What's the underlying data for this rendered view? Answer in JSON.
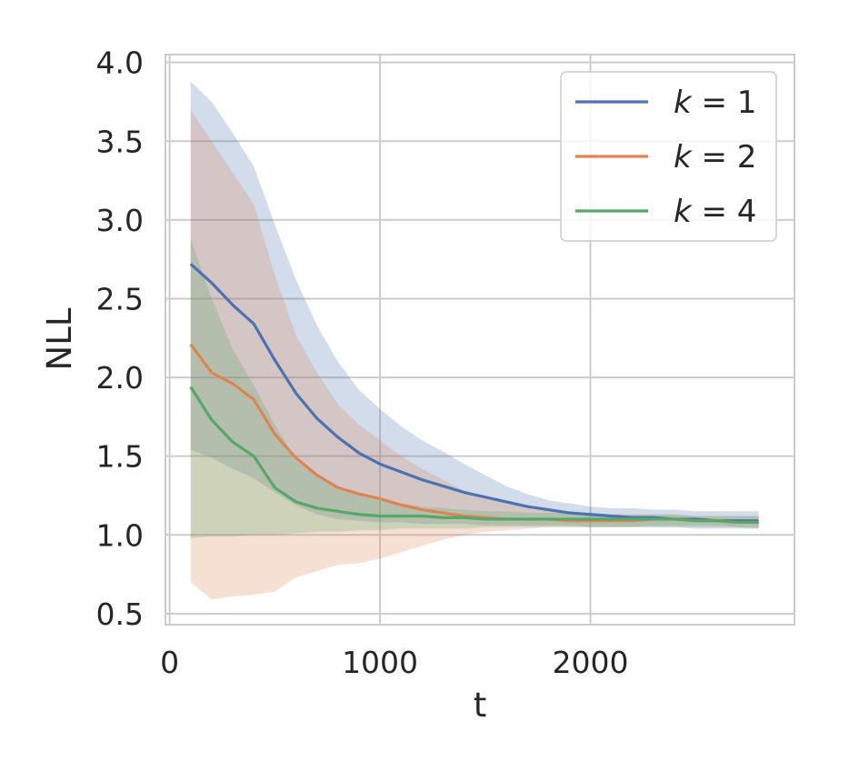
{
  "chart_data": {
    "type": "line",
    "xlabel": "t",
    "ylabel": "NLL",
    "xlim": [
      -20,
      2970
    ],
    "ylim": [
      0.43,
      4.05
    ],
    "xticks": [
      0,
      1000,
      2000
    ],
    "xtick_labels": [
      "0",
      "1000",
      "2000"
    ],
    "yticks": [
      0.5,
      1.0,
      1.5,
      2.0,
      2.5,
      3.0,
      3.5,
      4.0
    ],
    "ytick_labels": [
      "0.5",
      "1.0",
      "1.5",
      "2.0",
      "2.5",
      "3.0",
      "3.5",
      "4.0"
    ],
    "grid": true,
    "legend_position": "top-right",
    "x": [
      100,
      200,
      300,
      400,
      500,
      600,
      700,
      800,
      900,
      1000,
      1100,
      1200,
      1300,
      1400,
      1500,
      1600,
      1700,
      1800,
      1900,
      2000,
      2100,
      2200,
      2300,
      2400,
      2500,
      2600,
      2700,
      2800
    ],
    "series": [
      {
        "name": "k = 1",
        "color": "#4c72b0",
        "values": [
          2.72,
          2.6,
          2.46,
          2.34,
          2.11,
          1.9,
          1.74,
          1.62,
          1.52,
          1.45,
          1.4,
          1.35,
          1.31,
          1.27,
          1.24,
          1.21,
          1.18,
          1.16,
          1.14,
          1.13,
          1.12,
          1.11,
          1.11,
          1.1,
          1.1,
          1.09,
          1.09,
          1.09
        ],
        "upper": [
          3.88,
          3.75,
          3.55,
          3.34,
          2.97,
          2.62,
          2.33,
          2.1,
          1.92,
          1.8,
          1.69,
          1.6,
          1.53,
          1.45,
          1.38,
          1.31,
          1.26,
          1.22,
          1.2,
          1.18,
          1.17,
          1.17,
          1.16,
          1.16,
          1.15,
          1.15,
          1.15,
          1.15
        ],
        "lower": [
          1.54,
          1.49,
          1.42,
          1.36,
          1.27,
          1.19,
          1.13,
          1.1,
          1.09,
          1.08,
          1.08,
          1.07,
          1.07,
          1.07,
          1.06,
          1.06,
          1.06,
          1.06,
          1.06,
          1.05,
          1.05,
          1.05,
          1.05,
          1.05,
          1.04,
          1.04,
          1.04,
          1.04
        ]
      },
      {
        "name": "k = 2",
        "color": "#dd8452",
        "values": [
          2.21,
          2.03,
          1.96,
          1.86,
          1.64,
          1.49,
          1.38,
          1.3,
          1.26,
          1.23,
          1.19,
          1.16,
          1.14,
          1.12,
          1.11,
          1.1,
          1.1,
          1.1,
          1.09,
          1.09,
          1.09,
          1.09,
          1.1,
          1.1,
          1.09,
          1.09,
          1.08,
          1.08
        ],
        "upper": [
          3.7,
          3.5,
          3.3,
          3.1,
          2.65,
          2.27,
          2.03,
          1.83,
          1.7,
          1.6,
          1.5,
          1.42,
          1.35,
          1.28,
          1.23,
          1.2,
          1.17,
          1.15,
          1.14,
          1.13,
          1.13,
          1.13,
          1.13,
          1.13,
          1.12,
          1.12,
          1.12,
          1.12
        ],
        "lower": [
          0.7,
          0.59,
          0.61,
          0.62,
          0.64,
          0.73,
          0.77,
          0.81,
          0.82,
          0.85,
          0.89,
          0.93,
          0.97,
          1.0,
          1.02,
          1.03,
          1.04,
          1.05,
          1.05,
          1.05,
          1.05,
          1.05,
          1.06,
          1.06,
          1.06,
          1.06,
          1.05,
          1.05
        ]
      },
      {
        "name": "k = 4",
        "color": "#55a868",
        "values": [
          1.94,
          1.73,
          1.59,
          1.5,
          1.3,
          1.21,
          1.17,
          1.15,
          1.13,
          1.12,
          1.12,
          1.12,
          1.11,
          1.11,
          1.1,
          1.1,
          1.1,
          1.1,
          1.1,
          1.1,
          1.1,
          1.1,
          1.1,
          1.1,
          1.09,
          1.09,
          1.08,
          1.08
        ],
        "upper": [
          2.88,
          2.5,
          2.18,
          1.95,
          1.7,
          1.48,
          1.37,
          1.3,
          1.26,
          1.22,
          1.2,
          1.18,
          1.17,
          1.16,
          1.15,
          1.15,
          1.14,
          1.14,
          1.14,
          1.13,
          1.13,
          1.13,
          1.13,
          1.13,
          1.12,
          1.12,
          1.12,
          1.12
        ],
        "lower": [
          0.98,
          0.99,
          0.99,
          1.0,
          1.0,
          1.01,
          1.02,
          1.02,
          1.03,
          1.03,
          1.04,
          1.04,
          1.04,
          1.04,
          1.05,
          1.05,
          1.05,
          1.05,
          1.05,
          1.05,
          1.05,
          1.05,
          1.05,
          1.05,
          1.05,
          1.05,
          1.05,
          1.04
        ]
      }
    ]
  }
}
